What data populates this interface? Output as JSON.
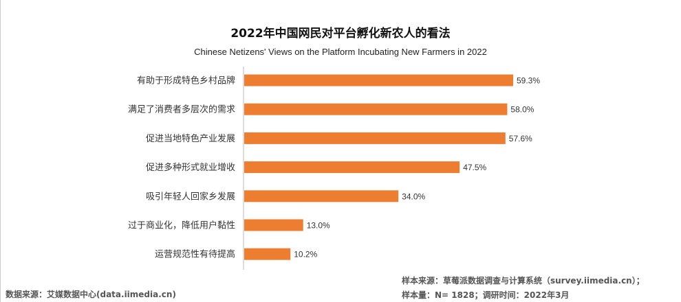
{
  "chart_data": {
    "type": "bar",
    "orientation": "horizontal",
    "title": "2022年中国网民对平台孵化新农人的看法",
    "subtitle": "Chinese Netizens' Views on the Platform Incubating New Farmers in 2022",
    "categories": [
      "有助于形成特色乡村品牌",
      "满足了消费者多层次的需求",
      "促进当地特色产业发展",
      "促进多种形式就业增收",
      "吸引年轻人回家乡发展",
      "过于商业化，降低用户黏性",
      "运营规范性有待提高"
    ],
    "values": [
      59.3,
      58.0,
      57.6,
      47.5,
      34.0,
      13.0,
      10.2
    ],
    "data_labels": [
      "59.3%",
      "58.0%",
      "57.6%",
      "47.5%",
      "34.0%",
      "13.0%",
      "10.2%"
    ],
    "unit": "%",
    "xlim": [
      0,
      60
    ],
    "grid": false,
    "bar_color": "#ED7D31"
  },
  "footer": {
    "data_source": "数据来源：艾媒数据中心(data.iimedia.cn)",
    "sample_source": "样本来源：草莓派数据调查与计算系统（survey.iimedia.cn）；",
    "sample_size": "样本量：N= 1828；调研时间：2022年3月"
  }
}
